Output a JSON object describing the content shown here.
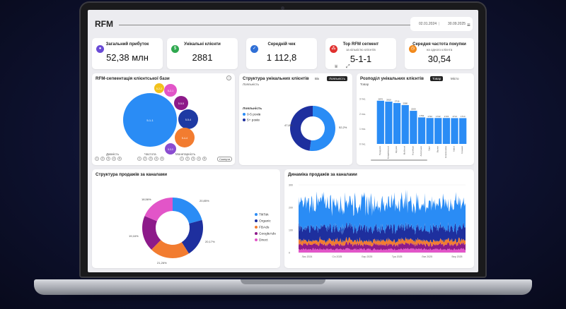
{
  "header": {
    "title": "RFM",
    "date_from": "02.01.2024",
    "date_to": "30.09.2025",
    "menu_icon": "≡"
  },
  "kpis": [
    {
      "label": "Загальний прибуток",
      "sub": "",
      "value": "52,38 млн",
      "icon_color": "#6a4bd6",
      "icon": "people-icon"
    },
    {
      "label": "Унікальні клієнти",
      "sub": "",
      "value": "2881",
      "icon_color": "#2fa84f",
      "icon": "money-icon"
    },
    {
      "label": "Середній чек",
      "sub": "",
      "value": "1 112,8",
      "icon_color": "#2f6fd6",
      "icon": "check-icon"
    },
    {
      "label": "Top RFM сегмент",
      "sub": "за кількістю клієнтів",
      "value": "5-1-1",
      "icon_color": "#e0302e",
      "icon": "segments-icon"
    },
    {
      "label": "Середня частота покупки",
      "sub": "на одного клієнта",
      "value": "30,54",
      "icon_color": "#f28a1c",
      "icon": "frequency-icon"
    }
  ],
  "rfm_panel": {
    "title": "RFM-сегментація клієнтської бази",
    "reset_label": "Скинути",
    "axis_labels": [
      "Давність",
      "Частота",
      "Монетарність"
    ],
    "bubbles": [
      {
        "label": "5-1-1",
        "color": "#2a8cf5"
      },
      {
        "label": "5-2-2",
        "color": "#f2c21c"
      },
      {
        "label": "5-2-1",
        "color": "#e255c8"
      },
      {
        "label": "5-5-5",
        "color": "#8d1a8a"
      },
      {
        "label": "5-5-4",
        "color": "#1e3aa3"
      },
      {
        "label": "5-4-4",
        "color": "#f27c30"
      },
      {
        "label": "5-3-3",
        "color": "#8a4cd0"
      }
    ],
    "filter_digits": [
      "1",
      "2",
      "3",
      "4",
      "5"
    ]
  },
  "unique_panel": {
    "title": "Структура унікальних клієнтів",
    "subtitle": "Лояльність",
    "tabs": [
      "Вік",
      "Лояльність"
    ],
    "legend_title": "Лояльність",
    "legend": [
      {
        "name": "0-5 років",
        "color": "#2a8cf5"
      },
      {
        "name": "5+ років",
        "color": "#1e2f9e"
      }
    ],
    "labels": [
      "47,8%",
      "52,2%"
    ],
    "chart_data": {
      "type": "pie",
      "categories": [
        "0-5 років",
        "5+ років"
      ],
      "values": [
        52.2,
        47.8
      ]
    }
  },
  "dist_panel": {
    "title": "Розподіл унікальних клієнтів",
    "subtitle": "Товар",
    "tabs": [
      "Товар",
      "Місто"
    ],
    "chart_data": {
      "type": "bar",
      "categories": [
        "Продукти",
        "Кондитерські",
        "Фрукти",
        "Мобільні",
        "Ноутбуки",
        "Аксесуари",
        "Одяг",
        "Взуття",
        "Електроніка",
        "Книги",
        "Іграшки"
      ],
      "values": [
        2870,
        2810,
        2716,
        2580,
        2200,
        1762,
        1722,
        1722,
        1722,
        1714,
        1714
      ],
      "value_labels": [
        "2870",
        "2810",
        "2716",
        "2580",
        "2200",
        "1762",
        "1722",
        "1722",
        "1722",
        "1714",
        "1714"
      ],
      "y_ticks": [
        "0 тис.",
        "1 тис.",
        "2 тис.",
        "3 тис."
      ],
      "ylim": [
        0,
        3000
      ]
    }
  },
  "sales_panel": {
    "title": "Структура продажів за каналами",
    "labels": [
      "18,56%",
      "20,85%",
      "19,16%",
      "20,17%",
      "21,26%"
    ],
    "legend": [
      {
        "name": "TikTok",
        "color": "#2a8cf5"
      },
      {
        "name": "Organic",
        "color": "#1e2f9e"
      },
      {
        "name": "FBAds",
        "color": "#f27c30"
      },
      {
        "name": "GoogleAds",
        "color": "#8d1a8a"
      },
      {
        "name": "Direct",
        "color": "#e255c8"
      }
    ],
    "chart_data": {
      "type": "pie",
      "categories": [
        "TikTok",
        "Organic",
        "FBAds",
        "GoogleAds",
        "Direct"
      ],
      "values": [
        20.85,
        20.17,
        21.26,
        19.16,
        18.56
      ]
    }
  },
  "dynamics_panel": {
    "title": "Динаміка продажів за каналами",
    "chart_data": {
      "type": "area",
      "x_ticks": [
        "Лис 2024",
        "Січ 2025",
        "Бер 2025",
        "Тра 2025",
        "Лип 2025",
        "Вер 2025"
      ],
      "y_ticks": [
        "0",
        "100",
        "200",
        "300"
      ],
      "ylim": [
        0,
        300
      ],
      "series": [
        {
          "name": "TikTok",
          "color": "#2a8cf5",
          "mean": 110
        },
        {
          "name": "Organic",
          "color": "#1e2f9e",
          "mean": 55
        },
        {
          "name": "FBAds",
          "color": "#f27c30",
          "mean": 18
        },
        {
          "name": "GoogleAds",
          "color": "#8d1a8a",
          "mean": 22
        },
        {
          "name": "Direct",
          "color": "#e255c8",
          "mean": 15
        }
      ]
    }
  }
}
